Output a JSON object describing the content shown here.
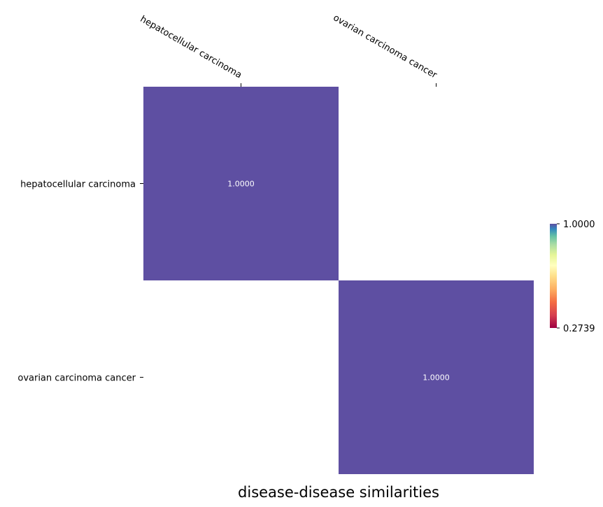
{
  "chart_data": {
    "type": "heatmap",
    "title": "disease-disease similarities",
    "rows": [
      "hepatocellular carcinoma",
      "ovarian carcinoma cancer"
    ],
    "columns": [
      "hepatocellular carcinoma",
      "ovarian carcinoma cancer"
    ],
    "values": [
      [
        1.0,
        null
      ],
      [
        null,
        1.0
      ]
    ],
    "value_labels": [
      [
        "1.0000",
        ""
      ],
      [
        "",
        "1.0000"
      ]
    ],
    "colormap": "Spectral",
    "colorbar": {
      "min": 0.2739,
      "max": 1.0,
      "tick_labels": [
        "1.0000",
        "0.2739"
      ]
    },
    "cell_color": "#5e4fa2",
    "grid": false,
    "legend_position": "right"
  }
}
